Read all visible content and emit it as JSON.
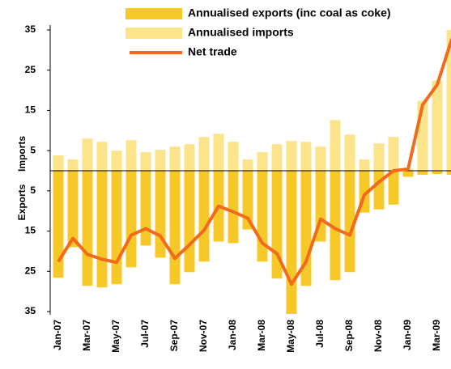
{
  "chart_data": {
    "type": "bar",
    "categories": [
      "Jan-07",
      null,
      "Mar-07",
      null,
      "May-07",
      null,
      "Jul-07",
      null,
      "Sep-07",
      null,
      "Nov-07",
      null,
      "Jan-08",
      null,
      "Mar-08",
      null,
      "May-08",
      null,
      "Jul-08",
      null,
      "Sep-08",
      null,
      "Nov-08",
      null,
      "Jan-09",
      null,
      "Mar-09",
      null
    ],
    "series": [
      {
        "name": "Annualised exports (inc coal as coke)",
        "type": "bar",
        "color": "#f7c928",
        "values": [
          -26.6,
          -19,
          -28.6,
          -29,
          -28.2,
          -24,
          -18.6,
          -21.6,
          -28.2,
          -25.2,
          -22.6,
          -17.6,
          -18,
          -14.6,
          -22.6,
          -26.8,
          -35.6,
          -28.6,
          -17.6,
          -27.2,
          -25.2,
          -10.4,
          -9.6,
          -8.4,
          -1.5,
          -1,
          -0.8,
          -1
        ]
      },
      {
        "name": "Annualised imports",
        "type": "bar",
        "color": "#fbe48a",
        "values": [
          3.8,
          2.8,
          8,
          7.2,
          5,
          7.6,
          4.6,
          5.2,
          6,
          6.6,
          8.4,
          9.2,
          7.2,
          2.8,
          4.6,
          6.6,
          7.4,
          7.2,
          6,
          12.6,
          9,
          2.8,
          6.8,
          8.4,
          0.5,
          17.4,
          22.4,
          35
        ]
      },
      {
        "name": "Net trade",
        "type": "line",
        "color": "#f26a1b",
        "values": [
          -22.6,
          -16.8,
          -20.8,
          -22,
          -22.8,
          -16,
          -14.4,
          -16.2,
          -21.8,
          -18.4,
          -14.8,
          -8.8,
          -10.2,
          -11.8,
          -18,
          -20.6,
          -28.2,
          -22.6,
          -12,
          -14.4,
          -16,
          -6,
          -2.8,
          0,
          0.4,
          16.4,
          21.4,
          32.8
        ]
      }
    ],
    "y_axis_labels": [
      "Imports",
      "Exports"
    ],
    "ylim": [
      -35,
      35
    ],
    "yticks": [
      35,
      25,
      15,
      5,
      {
        "value": -5,
        "label": "5"
      },
      {
        "value": -15,
        "label": "15"
      },
      {
        "value": -25,
        "label": "25"
      },
      {
        "value": -35,
        "label": "35"
      }
    ]
  }
}
